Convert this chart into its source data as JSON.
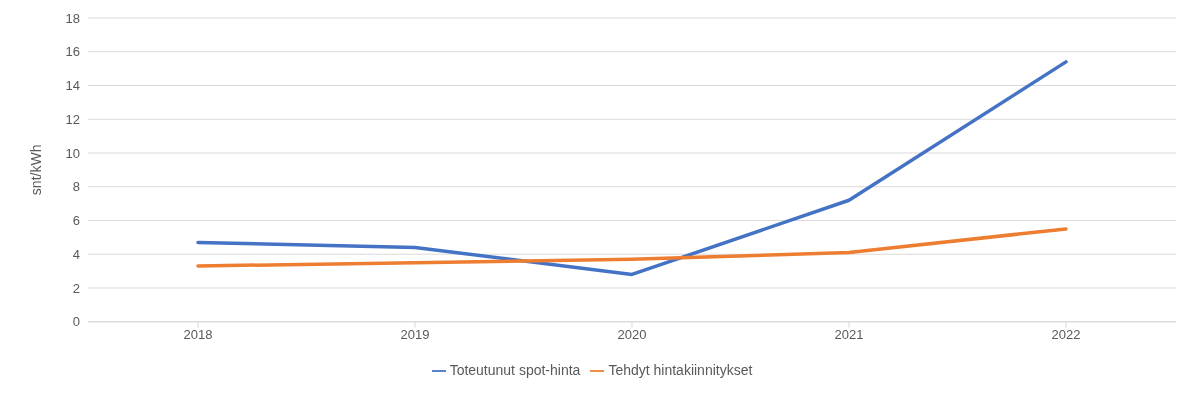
{
  "chart_data": {
    "type": "line",
    "ylabel": "snt/kWh",
    "categories": [
      "2018",
      "2019",
      "2020",
      "2021",
      "2022"
    ],
    "series": [
      {
        "name": "Toteutunut spot-hinta",
        "color": "#4472c4",
        "values": [
          4.7,
          4.4,
          2.8,
          7.2,
          15.4
        ]
      },
      {
        "name": "Tehdyt hintakiinnitykset",
        "color": "#ed7d31",
        "values": [
          3.3,
          3.5,
          3.7,
          4.1,
          5.5
        ]
      }
    ],
    "ylim": [
      0,
      18
    ],
    "yticks": [
      0,
      2,
      4,
      6,
      8,
      10,
      12,
      14,
      16,
      18
    ],
    "grid": "y",
    "legend": "bottom",
    "marker": "none",
    "line_style": "solid"
  }
}
